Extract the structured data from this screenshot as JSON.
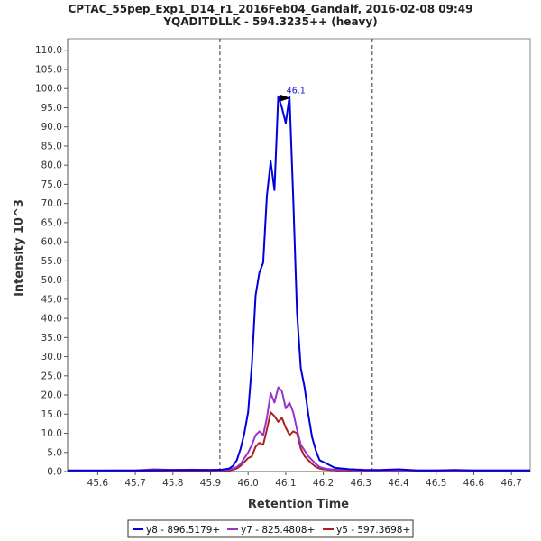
{
  "chart_data": {
    "type": "line",
    "title": "CPTAC_55pep_Exp1_D14_r1_2016Feb04_Gandalf, 2016-02-08 09:49",
    "subtitle": "YQADITDLLK - 594.3235++ (heavy)",
    "xlabel": "Retention Time",
    "ylabel": "Intensity 10^3",
    "xlim": [
      45.52,
      46.75
    ],
    "ylim": [
      0,
      113
    ],
    "xticks": [
      "45.6",
      "45.7",
      "45.8",
      "45.9",
      "46.0",
      "46.1",
      "46.2",
      "46.3",
      "46.4",
      "46.5",
      "46.6",
      "46.7"
    ],
    "yticks": [
      "0.0",
      "5.0",
      "10.0",
      "15.0",
      "20.0",
      "25.0",
      "30.0",
      "35.0",
      "40.0",
      "45.0",
      "50.0",
      "55.0",
      "60.0",
      "65.0",
      "70.0",
      "75.0",
      "80.0",
      "85.0",
      "90.0",
      "95.0",
      "100.0",
      "105.0",
      "110.0"
    ],
    "grid": false,
    "boundaries": [
      45.925,
      46.33
    ],
    "annotation": {
      "text": "46.1",
      "x": 46.12,
      "y": 98
    },
    "legend_position": "bottom",
    "series": [
      {
        "name": "y8 - 896.5179+",
        "color": "#0000dd",
        "x": [
          45.52,
          45.6,
          45.7,
          45.8,
          45.9,
          45.93,
          45.95,
          45.96,
          45.97,
          45.98,
          45.99,
          46.0,
          46.01,
          46.02,
          46.03,
          46.04,
          46.05,
          46.06,
          46.07,
          46.08,
          46.09,
          46.1,
          46.11,
          46.12,
          46.13,
          46.14,
          46.15,
          46.16,
          46.17,
          46.18,
          46.19,
          46.2,
          46.21,
          46.22,
          46.23,
          46.24,
          46.25,
          46.26,
          46.27,
          46.28,
          46.29,
          46.3,
          46.31,
          46.32,
          46.33,
          46.34,
          46.35,
          46.4,
          46.45,
          46.5,
          46.55,
          46.6,
          46.65,
          46.7,
          46.75
        ],
        "y": [
          0.3,
          0.3,
          0.3,
          0.4,
          0.4,
          0.5,
          0.8,
          1.5,
          3,
          6,
          10,
          15.5,
          28,
          46,
          52,
          54.5,
          72,
          81,
          73.5,
          98,
          95,
          91,
          98,
          71.5,
          41.5,
          27,
          22,
          15,
          9,
          5.5,
          3,
          2.5,
          2,
          1.5,
          1,
          0.9,
          0.8,
          0.7,
          0.6,
          0.6,
          0.5,
          0.5,
          0.4,
          0.4,
          0.4,
          0.4,
          0.4,
          0.6,
          0.3,
          0.3,
          0.4,
          0.3,
          0.3,
          0.3,
          0.3
        ]
      },
      {
        "name": "y7 - 825.4808+",
        "color": "#9933cc",
        "x": [
          45.52,
          45.7,
          45.75,
          45.8,
          45.85,
          45.9,
          45.93,
          45.95,
          45.96,
          45.97,
          45.98,
          45.99,
          46.0,
          46.01,
          46.02,
          46.03,
          46.04,
          46.05,
          46.06,
          46.07,
          46.08,
          46.09,
          46.1,
          46.11,
          46.12,
          46.13,
          46.14,
          46.15,
          46.16,
          46.17,
          46.18,
          46.19,
          46.2,
          46.21,
          46.22,
          46.23,
          46.24,
          46.25,
          46.26,
          46.27,
          46.28,
          46.29,
          46.3,
          46.35,
          46.4,
          46.5,
          46.6,
          46.7,
          46.75
        ],
        "y": [
          0.2,
          0.3,
          0.6,
          0.4,
          0.5,
          0.4,
          0.4,
          0.5,
          0.8,
          1.2,
          2,
          3.5,
          5,
          7,
          9.5,
          10.5,
          9.5,
          14,
          20.5,
          18,
          22,
          21,
          16.5,
          18,
          15.5,
          11,
          7,
          5.5,
          4,
          3,
          2,
          1.2,
          0.9,
          0.7,
          0.6,
          0.5,
          0.5,
          0.4,
          0.4,
          0.4,
          0.3,
          0.3,
          0.3,
          0.3,
          0.3,
          0.3,
          0.3,
          0.3,
          0.3
        ]
      },
      {
        "name": "y5 - 597.3698+",
        "color": "#aa2222",
        "x": [
          45.52,
          45.8,
          45.9,
          45.93,
          45.95,
          45.96,
          45.97,
          45.98,
          45.99,
          46.0,
          46.01,
          46.02,
          46.03,
          46.04,
          46.05,
          46.06,
          46.07,
          46.08,
          46.09,
          46.1,
          46.11,
          46.12,
          46.13,
          46.14,
          46.15,
          46.16,
          46.17,
          46.18,
          46.19,
          46.2,
          46.21,
          46.22,
          46.23,
          46.24,
          46.25,
          46.3,
          46.35,
          46.4,
          46.5,
          46.6,
          46.7,
          46.75
        ],
        "y": [
          0.2,
          0.2,
          0.2,
          0.2,
          0.3,
          0.5,
          0.8,
          1.5,
          2.5,
          3.5,
          4,
          6.5,
          7.5,
          7,
          11,
          15.5,
          14.5,
          13,
          14,
          11.5,
          9.5,
          10.5,
          10,
          6,
          4,
          3,
          2,
          1.2,
          0.8,
          0.6,
          0.5,
          0.4,
          0.4,
          0.3,
          0.3,
          0.2,
          0.2,
          0.2,
          0.2,
          0.2,
          0.2,
          0.2
        ]
      }
    ]
  }
}
